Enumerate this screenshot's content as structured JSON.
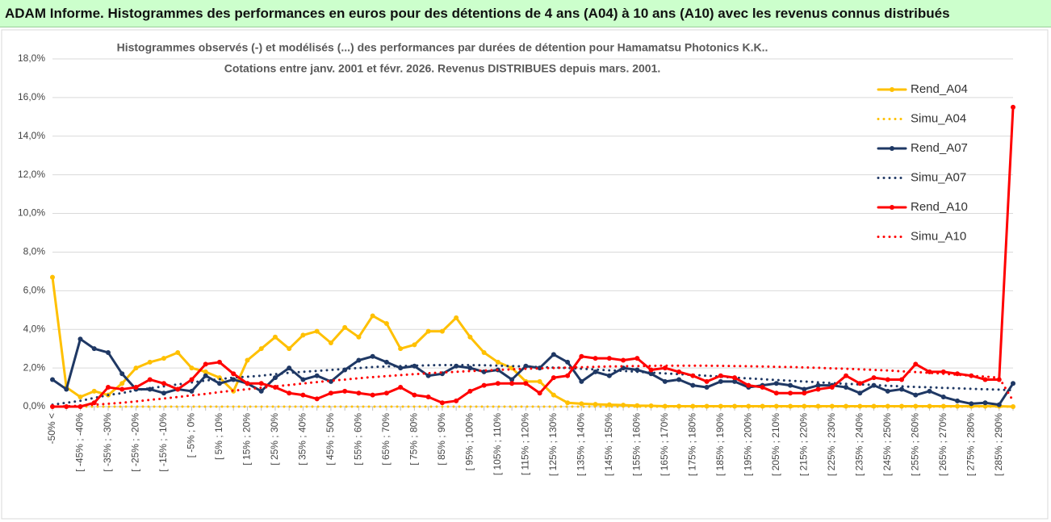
{
  "header": {
    "title": "ADAM Informe. Histogrammes des performances en euros pour des détentions de 4 ans (A04) à 10 ans (A10) avec les revenus connus distribués"
  },
  "chart_data": {
    "type": "line",
    "title": "Histogrammes observés (-) et modélisés (...) des performances par durées de détention pour Hamamatsu Photonics K.K..",
    "subtitle": "Cotations entre janv. 2001 et févr. 2026. Revenus DISTRIBUES depuis mars. 2001.",
    "categories": [
      "-50% <",
      null,
      "[ -45% ; -40%",
      null,
      "[ -35% ; -30%",
      null,
      "[ -25% ; -20%",
      null,
      "[ -15% ; -10%",
      null,
      "[ -5% ; 0%",
      null,
      "[ 5% ; 10%",
      null,
      "[ 15% ; 20%",
      null,
      "[ 25% ; 30%",
      null,
      "[ 35% ; 40%",
      null,
      "[ 45% ; 50%",
      null,
      "[ 55% ; 60%",
      null,
      "[ 65% ; 70%",
      null,
      "[ 75% ; 80%",
      null,
      "[ 85% ; 90%",
      null,
      "[ 95% ; 100%",
      null,
      "[ 105% ; 110%",
      null,
      "[ 115% ; 120%",
      null,
      "[ 125% ; 130%",
      null,
      "[ 135% ; 140%",
      null,
      "[ 145% ; 150%",
      null,
      "[ 155% ; 160%",
      null,
      "[ 165% ; 170%",
      null,
      "[ 175% ; 180%",
      null,
      "[ 185% ; 190%",
      null,
      "[ 195% ; 200%",
      null,
      "[ 205% ; 210%",
      null,
      "[ 215% ; 220%",
      null,
      "[ 225% ; 230%",
      null,
      "[ 235% ; 240%",
      null,
      "[ 245% ; 250%",
      null,
      "[ 255% ; 260%",
      null,
      "[ 265% ; 270%",
      null,
      "[ 275% ; 280%",
      null,
      "[ 285% ; 290%",
      null
    ],
    "ylim": [
      0,
      18
    ],
    "yticks": [
      {
        "value": 0,
        "label": "0,0%"
      },
      {
        "value": 2,
        "label": "2,0%"
      },
      {
        "value": 4,
        "label": "4,0%"
      },
      {
        "value": 6,
        "label": "6,0%"
      },
      {
        "value": 8,
        "label": "8,0%"
      },
      {
        "value": 10,
        "label": "10,0%"
      },
      {
        "value": 12,
        "label": "12,0%"
      },
      {
        "value": 14,
        "label": "14,0%"
      },
      {
        "value": 16,
        "label": "16,0%"
      },
      {
        "value": 18,
        "label": "18,0%"
      }
    ],
    "grid": true,
    "legend": "right",
    "series": [
      {
        "name": "Rend_A04",
        "color": "#ffc000",
        "dash": "solid",
        "values": [
          6.7,
          1.0,
          0.5,
          0.8,
          0.6,
          1.2,
          2.0,
          2.3,
          2.5,
          2.8,
          2.0,
          1.8,
          1.5,
          0.8,
          2.4,
          3.0,
          3.6,
          3.0,
          3.7,
          3.9,
          3.3,
          4.1,
          3.6,
          4.7,
          4.3,
          3.0,
          3.2,
          3.9,
          3.9,
          4.6,
          3.6,
          2.8,
          2.3,
          2.0,
          1.3,
          1.3,
          0.6,
          0.2,
          0.15,
          0.12,
          0.1,
          0.08,
          0.05,
          0.04,
          0.02,
          0.02,
          0.02,
          0.02,
          0.02,
          0.02,
          0.02,
          0.02,
          0.02,
          0.02,
          0.02,
          0.02,
          0.02,
          0.02,
          0.02,
          0.02,
          0.02,
          0.02,
          0.02,
          0.02,
          0.02,
          0.02,
          0.02,
          0.02,
          0.02,
          0
        ]
      },
      {
        "name": "Simu_A04",
        "color": "#ffc000",
        "dash": "dotted",
        "values": [
          0,
          0,
          0,
          0,
          0,
          0,
          0,
          0,
          0,
          0,
          0,
          0,
          0,
          0,
          0,
          0,
          0,
          0,
          0,
          0,
          0,
          0,
          0,
          0,
          0,
          0,
          0,
          0,
          0,
          0,
          0,
          0,
          0,
          0,
          0,
          0,
          0,
          0,
          0,
          0,
          0,
          0,
          0,
          0,
          0,
          0,
          0,
          0,
          0,
          0,
          0,
          0,
          0,
          0,
          0,
          0,
          0,
          0,
          0,
          0,
          0,
          0,
          0,
          0,
          0,
          0,
          0,
          0,
          0,
          0
        ]
      },
      {
        "name": "Rend_A07",
        "color": "#1f3864",
        "dash": "solid",
        "values": [
          1.4,
          0.9,
          3.5,
          3.0,
          2.8,
          1.7,
          0.9,
          0.9,
          0.7,
          0.9,
          0.8,
          1.6,
          1.2,
          1.4,
          1.2,
          0.8,
          1.5,
          2.0,
          1.4,
          1.6,
          1.3,
          1.9,
          2.4,
          2.6,
          2.3,
          2.0,
          2.1,
          1.6,
          1.7,
          2.1,
          2.0,
          1.8,
          1.9,
          1.4,
          2.1,
          2.0,
          2.7,
          2.3,
          1.3,
          1.8,
          1.6,
          2.0,
          1.9,
          1.7,
          1.3,
          1.4,
          1.1,
          1.0,
          1.3,
          1.3,
          1.0,
          1.1,
          1.2,
          1.1,
          0.9,
          1.1,
          1.1,
          1.0,
          0.7,
          1.1,
          0.8,
          0.9,
          0.6,
          0.8,
          0.5,
          0.3,
          0.15,
          0.2,
          0.1,
          1.2
        ]
      },
      {
        "name": "Simu_A07",
        "color": "#1f3864",
        "dash": "dotted",
        "values": [
          0.1,
          0.2,
          0.3,
          0.45,
          0.6,
          0.7,
          0.85,
          0.95,
          1.05,
          1.15,
          1.25,
          1.35,
          1.42,
          1.5,
          1.55,
          1.6,
          1.68,
          1.75,
          1.8,
          1.85,
          1.9,
          1.95,
          2.0,
          2.05,
          2.08,
          2.1,
          2.12,
          2.14,
          2.15,
          2.15,
          2.15,
          2.14,
          2.12,
          2.1,
          2.08,
          2.05,
          2.02,
          2.0,
          1.96,
          1.92,
          1.88,
          1.85,
          1.8,
          1.76,
          1.72,
          1.68,
          1.64,
          1.6,
          1.55,
          1.5,
          1.46,
          1.42,
          1.38,
          1.34,
          1.3,
          1.26,
          1.22,
          1.18,
          1.15,
          1.12,
          1.08,
          1.05,
          1.02,
          1.0,
          0.97,
          0.95,
          0.92,
          0.9,
          0.88,
          0.85
        ]
      },
      {
        "name": "Rend_A10",
        "color": "#ff0000",
        "dash": "solid",
        "values": [
          0,
          0,
          0,
          0.2,
          1.0,
          0.9,
          1.0,
          1.4,
          1.2,
          0.9,
          1.4,
          2.2,
          2.3,
          1.7,
          1.2,
          1.2,
          1.0,
          0.7,
          0.6,
          0.4,
          0.7,
          0.8,
          0.7,
          0.6,
          0.7,
          1.0,
          0.6,
          0.5,
          0.2,
          0.3,
          0.8,
          1.1,
          1.2,
          1.2,
          1.2,
          0.7,
          1.5,
          1.6,
          2.6,
          2.5,
          2.5,
          2.4,
          2.5,
          1.9,
          2.0,
          1.8,
          1.6,
          1.3,
          1.6,
          1.5,
          1.1,
          1.0,
          0.7,
          0.7,
          0.7,
          0.9,
          1.0,
          1.6,
          1.2,
          1.5,
          1.4,
          1.4,
          2.2,
          1.8,
          1.8,
          1.7,
          1.6,
          1.4,
          1.4,
          15.5
        ]
      },
      {
        "name": "Simu_A10",
        "color": "#ff0000",
        "dash": "dotted",
        "values": [
          0,
          0.02,
          0.05,
          0.1,
          0.15,
          0.2,
          0.27,
          0.35,
          0.42,
          0.5,
          0.58,
          0.66,
          0.75,
          0.83,
          0.9,
          0.98,
          1.05,
          1.12,
          1.2,
          1.27,
          1.34,
          1.4,
          1.47,
          1.53,
          1.58,
          1.63,
          1.68,
          1.73,
          1.77,
          1.8,
          1.84,
          1.87,
          1.9,
          1.93,
          1.96,
          1.98,
          2.0,
          2.02,
          2.04,
          2.06,
          2.08,
          2.09,
          2.1,
          2.11,
          2.12,
          2.12,
          2.12,
          2.12,
          2.11,
          2.1,
          2.09,
          2.08,
          2.06,
          2.05,
          2.03,
          2.01,
          1.98,
          1.96,
          1.93,
          1.9,
          1.87,
          1.83,
          1.79,
          1.75,
          1.7,
          1.65,
          1.6,
          1.55,
          1.5,
          0.3
        ]
      }
    ]
  }
}
